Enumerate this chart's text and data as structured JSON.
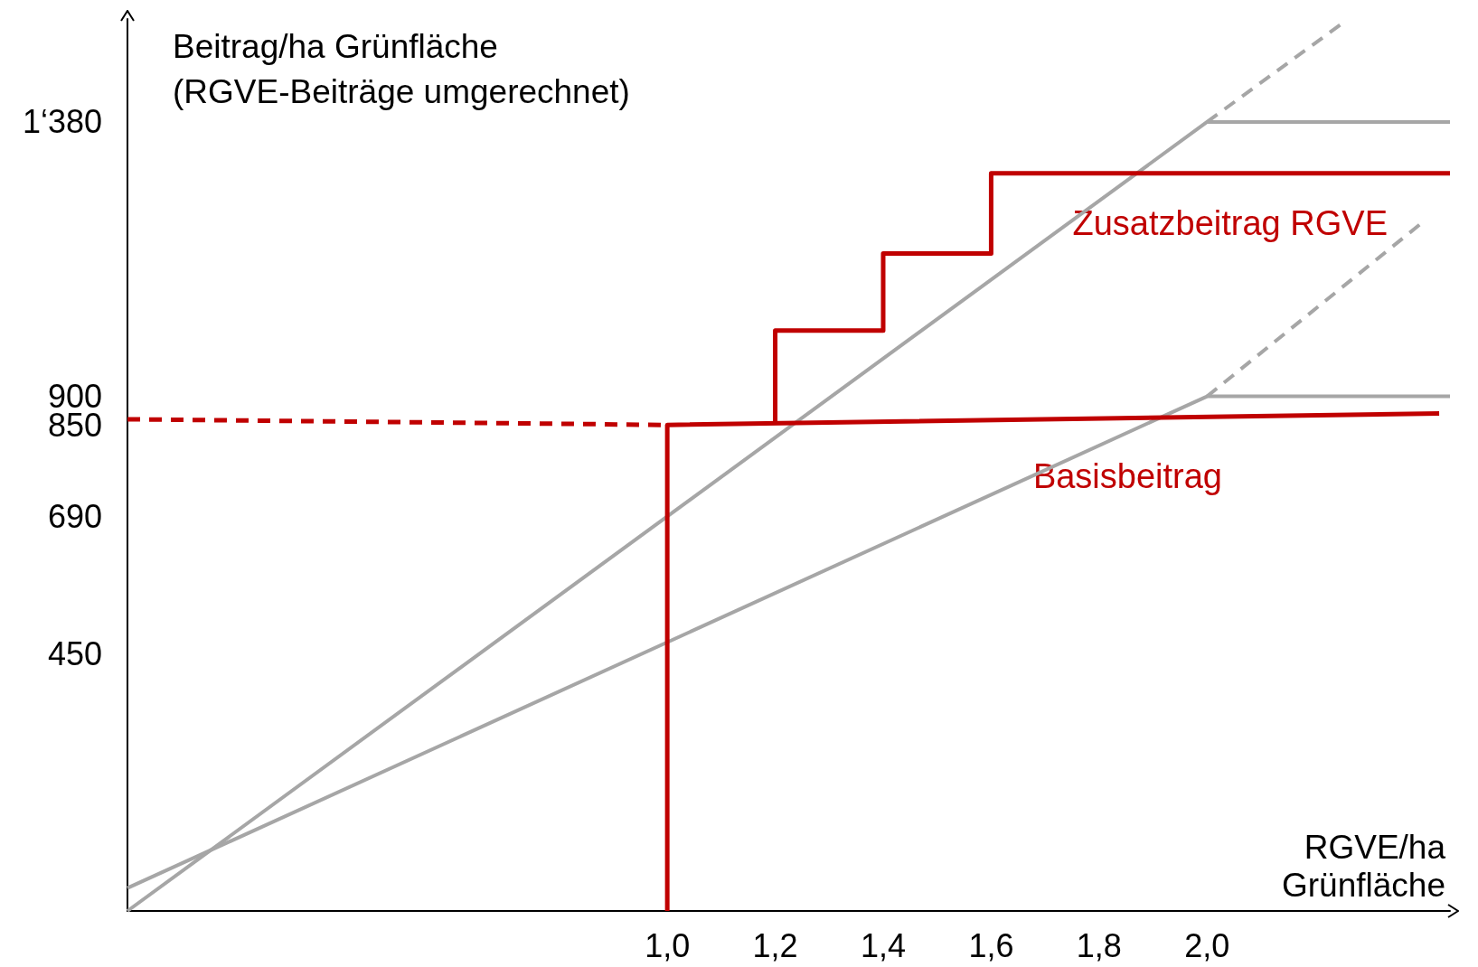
{
  "chart_data": {
    "type": "line",
    "xlabel": "RGVE/ha\nGrünfläche",
    "ylabel": "Beitrag/ha Grünfläche\n(RGVE-Beiträge umgerechnet)",
    "xlim": [
      0,
      2.45
    ],
    "ylim": [
      0,
      1560
    ],
    "xticks": [
      {
        "value": 1,
        "label": "1,0"
      },
      {
        "value": 1.2,
        "label": "1,2"
      },
      {
        "value": 1.4,
        "label": "1,4"
      },
      {
        "value": 1.6,
        "label": "1,6"
      },
      {
        "value": 1.8,
        "label": "1,8"
      },
      {
        "value": 2,
        "label": "2,0"
      }
    ],
    "yticks": [
      450,
      690,
      850,
      900,
      {
        "value": 1380,
        "label": "1‘380"
      }
    ],
    "grid": false,
    "marker": "none",
    "series": [
      {
        "color": "#a6a6a6",
        "x": [
          0,
          2,
          2.45
        ],
        "values": [
          0,
          1380,
          1380
        ],
        "line_style": "solid"
      },
      {
        "color": "#a6a6a6",
        "x": [
          2,
          2.25
        ],
        "values": [
          1380,
          1552
        ],
        "line_style": "dashed"
      },
      {
        "color": "#a6a6a6",
        "x": [
          0,
          2,
          2.45
        ],
        "values": [
          40,
          900,
          900
        ],
        "line_style": "solid"
      },
      {
        "color": "#a6a6a6",
        "x": [
          2,
          2.4
        ],
        "values": [
          900,
          1205
        ],
        "line_style": "dashed"
      },
      {
        "color": "#c00000",
        "x": [
          0,
          1
        ],
        "values": [
          860,
          850
        ],
        "line_style": "dashed"
      },
      {
        "color": "#c00000",
        "x": [
          1,
          1,
          2.43
        ],
        "values": [
          0,
          850,
          870
        ],
        "line_style": "solid"
      },
      {
        "color": "#c00000",
        "x": [
          1.2,
          1.2,
          1.4,
          1.4,
          1.6,
          1.6,
          2.45
        ],
        "values": [
          855,
          1015,
          1015,
          1150,
          1150,
          1290,
          1290
        ],
        "line_style": "solid"
      }
    ],
    "annotations": [
      "Zusatzbeitrag RGVE",
      "Basisbeitrag"
    ]
  }
}
